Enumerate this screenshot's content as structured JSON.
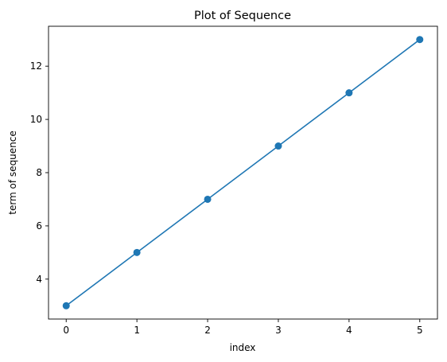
{
  "chart_data": {
    "type": "line",
    "title": "Plot of Sequence",
    "xlabel": "index",
    "ylabel": "term of sequence",
    "x": [
      0,
      1,
      2,
      3,
      4,
      5
    ],
    "series": [
      {
        "values": [
          3,
          5,
          7,
          9,
          11,
          13
        ],
        "color": "#1f77b4",
        "marker": "circle"
      }
    ],
    "xlim": [
      -0.25,
      5.25
    ],
    "ylim": [
      2.5,
      13.5
    ],
    "xticks": [
      0,
      1,
      2,
      3,
      4,
      5
    ],
    "yticks": [
      4,
      6,
      8,
      10,
      12
    ],
    "grid": false,
    "legend": "none"
  }
}
